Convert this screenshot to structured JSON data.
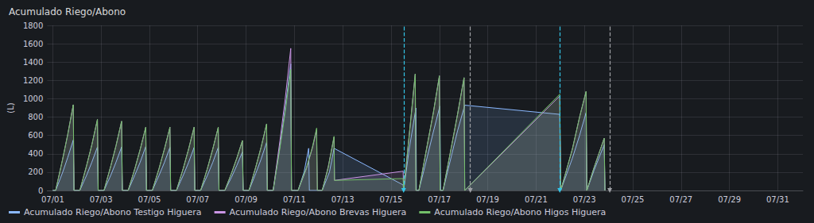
{
  "chart_data": {
    "type": "line",
    "title": "Acumulado Riego/Abono",
    "y_label": "(L)",
    "xlim": [
      0.77,
      32.04
    ],
    "xticks": [
      {
        "value": 1,
        "label": "07/01"
      },
      {
        "value": 3,
        "label": "07/03"
      },
      {
        "value": 5,
        "label": "07/05"
      },
      {
        "value": 7,
        "label": "07/07"
      },
      {
        "value": 9,
        "label": "07/09"
      },
      {
        "value": 11,
        "label": "07/11"
      },
      {
        "value": 13,
        "label": "07/13"
      },
      {
        "value": 15,
        "label": "07/15"
      },
      {
        "value": 17,
        "label": "07/17"
      },
      {
        "value": 19,
        "label": "07/19"
      },
      {
        "value": 21,
        "label": "07/21"
      },
      {
        "value": 23,
        "label": "07/23"
      },
      {
        "value": 25,
        "label": "07/25"
      },
      {
        "value": 27,
        "label": "07/27"
      },
      {
        "value": 29,
        "label": "07/29"
      },
      {
        "value": 31,
        "label": "07/31"
      }
    ],
    "ylim": [
      0,
      1800
    ],
    "yticks": [
      0,
      200,
      400,
      600,
      800,
      1000,
      1200,
      1400,
      1600,
      1800
    ],
    "grid": true,
    "legend": "bottom-left",
    "vlines": [
      {
        "x": 15.52,
        "color": "#33c5e8"
      },
      {
        "x": 18.28,
        "color": "#9fa1a6"
      },
      {
        "x": 21.98,
        "color": "#33c5e8"
      },
      {
        "x": 24.05,
        "color": "#9fa1a6"
      }
    ],
    "series": [
      {
        "name": "Acumulado Riego/Abono Testigo Higuera",
        "color": "#8ab8ff",
        "x": [
          1.0,
          1.12,
          1.4,
          1.62,
          1.85,
          1.88,
          2.12,
          2.4,
          2.62,
          2.85,
          2.88,
          3.12,
          3.4,
          3.62,
          3.85,
          3.88,
          4.12,
          4.4,
          4.62,
          4.85,
          4.88,
          5.12,
          5.4,
          5.62,
          5.85,
          5.88,
          6.12,
          6.4,
          6.62,
          6.85,
          6.88,
          7.12,
          7.4,
          7.62,
          7.85,
          7.88,
          8.12,
          8.4,
          8.62,
          8.85,
          8.88,
          9.12,
          9.4,
          9.62,
          9.85,
          9.88,
          10.12,
          10.4,
          10.62,
          10.85,
          10.88,
          11.15,
          11.4,
          11.59,
          11.62,
          12.15,
          12.45,
          12.64,
          15.5,
          15.52,
          15.75,
          16.03,
          16.05,
          16.15,
          16.5,
          16.75,
          17.02,
          17.05,
          17.15,
          17.5,
          17.75,
          18.05,
          21.98,
          22.02,
          22.5,
          22.8,
          23.07,
          23.1,
          23.4,
          23.82,
          23.85
        ],
        "values": [
          0,
          0,
          190,
          360,
          550,
          0,
          0,
          165,
          310,
          475,
          0,
          0,
          165,
          310,
          475,
          0,
          0,
          170,
          310,
          480,
          0,
          0,
          165,
          305,
          470,
          0,
          0,
          165,
          305,
          470,
          0,
          0,
          165,
          305,
          470,
          0,
          0,
          145,
          275,
          420,
          0,
          0,
          185,
          340,
          525,
          0,
          0,
          480,
          900,
          1380,
          0,
          0,
          200,
          460,
          0,
          0,
          200,
          460,
          60,
          0,
          450,
          900,
          0,
          0,
          370,
          640,
          920,
          0,
          0,
          380,
          650,
          930,
          830,
          0,
          350,
          600,
          850,
          0,
          220,
          500,
          0
        ]
      },
      {
        "name": "Acumulado Riego/Abono Brevas Higuera",
        "color": "#ca95e5",
        "x": [
          1.0,
          1.12,
          1.4,
          1.62,
          1.85,
          1.88,
          2.12,
          2.4,
          2.62,
          2.85,
          2.88,
          3.12,
          3.4,
          3.62,
          3.85,
          3.88,
          4.12,
          4.4,
          4.62,
          4.85,
          4.88,
          5.12,
          5.4,
          5.62,
          5.85,
          5.88,
          6.12,
          6.4,
          6.62,
          6.85,
          6.88,
          7.12,
          7.4,
          7.62,
          7.85,
          7.88,
          8.12,
          8.4,
          8.62,
          8.85,
          8.88,
          9.12,
          9.4,
          9.62,
          9.85,
          9.88,
          10.12,
          10.4,
          10.62,
          10.85,
          10.88,
          11.15,
          11.5,
          11.75,
          11.92,
          11.95,
          12.15,
          12.4,
          12.64,
          12.66,
          15.5,
          15.52,
          15.75,
          16.0,
          16.03,
          16.15,
          16.5,
          16.75,
          17.0,
          17.03,
          17.15,
          17.5,
          17.75,
          18.02,
          18.05,
          21.98,
          22.02,
          22.5,
          22.8,
          23.07,
          23.1,
          23.4,
          23.82,
          23.85
        ],
        "values": [
          0,
          0,
          330,
          610,
          935,
          0,
          0,
          270,
          500,
          775,
          0,
          0,
          265,
          490,
          755,
          0,
          0,
          240,
          450,
          690,
          0,
          0,
          240,
          450,
          690,
          0,
          0,
          240,
          450,
          690,
          0,
          0,
          240,
          450,
          690,
          0,
          0,
          190,
          355,
          545,
          0,
          0,
          255,
          470,
          725,
          0,
          0,
          540,
          1000,
          1550,
          0,
          0,
          240,
          470,
          660,
          0,
          0,
          260,
          580,
          110,
          210,
          0,
          600,
          1270,
          0,
          0,
          500,
          850,
          1250,
          0,
          0,
          480,
          830,
          1230,
          0,
          1030,
          0,
          450,
          800,
          1080,
          0,
          250,
          570,
          0
        ]
      },
      {
        "name": "Acumulado Riego/Abono Higos Higuera",
        "color": "#73bf69",
        "x": [
          1.0,
          1.12,
          1.4,
          1.62,
          1.85,
          1.88,
          2.12,
          2.4,
          2.62,
          2.85,
          2.88,
          3.12,
          3.4,
          3.62,
          3.85,
          3.88,
          4.12,
          4.4,
          4.62,
          4.85,
          4.88,
          5.12,
          5.4,
          5.62,
          5.85,
          5.88,
          6.12,
          6.4,
          6.62,
          6.85,
          6.88,
          7.12,
          7.4,
          7.62,
          7.85,
          7.88,
          8.12,
          8.4,
          8.62,
          8.85,
          8.88,
          9.12,
          9.4,
          9.62,
          9.85,
          9.88,
          10.12,
          10.4,
          10.62,
          10.85,
          10.88,
          11.15,
          11.5,
          11.75,
          11.92,
          11.95,
          12.15,
          12.4,
          12.64,
          12.66,
          15.5,
          15.52,
          15.75,
          16.0,
          16.03,
          16.15,
          16.5,
          16.75,
          17.0,
          17.03,
          17.15,
          17.5,
          17.75,
          18.02,
          18.05,
          21.98,
          22.02,
          22.5,
          22.8,
          23.07,
          23.1,
          23.4,
          23.82,
          23.85
        ],
        "values": [
          0,
          0,
          330,
          610,
          935,
          0,
          0,
          270,
          500,
          775,
          0,
          0,
          265,
          490,
          755,
          0,
          0,
          240,
          450,
          690,
          0,
          0,
          240,
          450,
          690,
          0,
          0,
          240,
          450,
          690,
          0,
          0,
          240,
          450,
          690,
          0,
          0,
          190,
          355,
          545,
          0,
          0,
          255,
          470,
          725,
          0,
          0,
          460,
          860,
          1320,
          0,
          0,
          250,
          480,
          680,
          0,
          0,
          250,
          590,
          110,
          130,
          0,
          600,
          1270,
          0,
          0,
          500,
          850,
          1250,
          0,
          0,
          480,
          830,
          1230,
          0,
          1050,
          0,
          450,
          800,
          1080,
          0,
          250,
          570,
          0
        ]
      }
    ]
  }
}
